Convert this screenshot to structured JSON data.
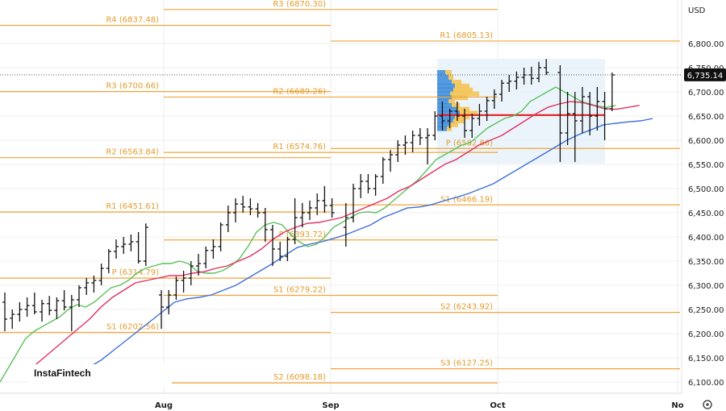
{
  "currency": "USD",
  "logo": "InstaFintech",
  "price_badge": "6,735.14",
  "chart_data": {
    "type": "ohlc",
    "y_ticks": [
      6100,
      6150,
      6200,
      6250,
      6300,
      6350,
      6400,
      6450,
      6500,
      6550,
      6600,
      6650,
      6700,
      6750,
      6800
    ],
    "y_tick_labels": [
      "6,100.00",
      "6,150.00",
      "6,200.00",
      "6,250.00",
      "6,300.00",
      "6,350.00",
      "6,400.00",
      "6,450.00",
      "6,500.00",
      "6,550.00",
      "6,600.00",
      "6,650.00",
      "6,700.00",
      "6,750.00",
      "6,800.00"
    ],
    "ylim": [
      6085,
      6890
    ],
    "months": [
      "Aug",
      "Sep",
      "Oct",
      "No"
    ],
    "current_price": 6735.14,
    "poc_level": 6652,
    "pivots": [
      {
        "period": 0,
        "levels": [
          {
            "label": "R4 (6837.48)",
            "value": 6837.48
          },
          {
            "label": "R3 (6700.66)",
            "value": 6700.66
          },
          {
            "label": "R2 (6563.84)",
            "value": 6563.84
          },
          {
            "label": "R1 (6451.61)",
            "value": 6451.61
          },
          {
            "label": "P (6314.79)",
            "value": 6314.79
          },
          {
            "label": "S1 (6202.56)",
            "value": 6202.56
          }
        ]
      },
      {
        "period": 1,
        "levels": [
          {
            "label": "R3 (6870.30)",
            "value": 6870.3
          },
          {
            "label": "R2 (6689.26)",
            "value": 6689.26
          },
          {
            "label": "R1 (6574.76)",
            "value": 6574.76
          },
          {
            "label": "P (6393.72)",
            "value": 6393.72
          },
          {
            "label": "S1 (6279.22)",
            "value": 6279.22
          },
          {
            "label": "S2 (6098.18)",
            "value": 6098.18
          }
        ]
      },
      {
        "period": 2,
        "levels": [
          {
            "label": "R1 (6805.13)",
            "value": 6805.13
          },
          {
            "label": "P (6582.86)",
            "value": 6582.86
          },
          {
            "label": "S1 (6466.19)",
            "value": 6466.19
          },
          {
            "label": "S2 (6243.92)",
            "value": 6243.92
          },
          {
            "label": "S3 (6127.25)",
            "value": 6127.25
          }
        ]
      }
    ],
    "bars": [
      [
        6265,
        6285,
        6205,
        6230
      ],
      [
        6232,
        6250,
        6210,
        6240
      ],
      [
        6240,
        6265,
        6225,
        6250
      ],
      [
        6250,
        6275,
        6235,
        6258
      ],
      [
        6258,
        6285,
        6240,
        6245
      ],
      [
        6245,
        6270,
        6225,
        6262
      ],
      [
        6262,
        6278,
        6238,
        6248
      ],
      [
        6248,
        6275,
        6230,
        6268
      ],
      [
        6268,
        6290,
        6248,
        6255
      ],
      [
        6255,
        6280,
        6205,
        6270
      ],
      [
        6270,
        6300,
        6255,
        6295
      ],
      [
        6295,
        6315,
        6280,
        6305
      ],
      [
        6305,
        6320,
        6285,
        6310
      ],
      [
        6310,
        6345,
        6300,
        6335
      ],
      [
        6335,
        6375,
        6325,
        6370
      ],
      [
        6370,
        6395,
        6355,
        6380
      ],
      [
        6380,
        6400,
        6365,
        6385
      ],
      [
        6385,
        6405,
        6370,
        6390
      ],
      [
        6390,
        6410,
        6345,
        6350
      ],
      [
        6350,
        6428,
        6340,
        6420
      ],
      [
        6280,
        6290,
        6210,
        6255
      ],
      [
        6255,
        6290,
        6240,
        6280
      ],
      [
        6280,
        6318,
        6270,
        6310
      ],
      [
        6310,
        6330,
        6285,
        6315
      ],
      [
        6315,
        6350,
        6300,
        6340
      ],
      [
        6340,
        6365,
        6320,
        6345
      ],
      [
        6345,
        6380,
        6335,
        6372
      ],
      [
        6372,
        6395,
        6355,
        6380
      ],
      [
        6380,
        6430,
        6370,
        6425
      ],
      [
        6425,
        6465,
        6410,
        6450
      ],
      [
        6450,
        6480,
        6430,
        6468
      ],
      [
        6468,
        6485,
        6450,
        6462
      ],
      [
        6462,
        6480,
        6445,
        6458
      ],
      [
        6458,
        6470,
        6440,
        6450
      ],
      [
        6450,
        6460,
        6390,
        6415
      ],
      [
        6415,
        6425,
        6340,
        6375
      ],
      [
        6375,
        6390,
        6350,
        6360
      ],
      [
        6360,
        6400,
        6350,
        6395
      ],
      [
        6395,
        6480,
        6385,
        6440
      ],
      [
        6440,
        6470,
        6420,
        6450
      ],
      [
        6450,
        6475,
        6435,
        6460
      ],
      [
        6460,
        6490,
        6445,
        6475
      ],
      [
        6475,
        6505,
        6450,
        6465
      ],
      [
        6465,
        6480,
        6440,
        6450
      ],
      [
        6420,
        6470,
        6380,
        6440
      ],
      [
        6440,
        6510,
        6430,
        6500
      ],
      [
        6500,
        6530,
        6480,
        6515
      ],
      [
        6515,
        6530,
        6490,
        6500
      ],
      [
        6500,
        6530,
        6485,
        6525
      ],
      [
        6525,
        6565,
        6510,
        6560
      ],
      [
        6560,
        6580,
        6535,
        6570
      ],
      [
        6570,
        6600,
        6555,
        6590
      ],
      [
        6590,
        6610,
        6570,
        6595
      ],
      [
        6595,
        6620,
        6575,
        6610
      ],
      [
        6610,
        6625,
        6590,
        6605
      ],
      [
        6605,
        6625,
        6550,
        6610
      ],
      [
        6610,
        6660,
        6600,
        6650
      ],
      [
        6650,
        6680,
        6620,
        6640
      ],
      [
        6640,
        6665,
        6625,
        6660
      ],
      [
        6660,
        6680,
        6640,
        6650
      ],
      [
        6650,
        6665,
        6605,
        6620
      ],
      [
        6620,
        6655,
        6605,
        6645
      ],
      [
        6645,
        6675,
        6630,
        6660
      ],
      [
        6660,
        6690,
        6640,
        6682
      ],
      [
        6682,
        6705,
        6665,
        6695
      ],
      [
        6695,
        6725,
        6680,
        6718
      ],
      [
        6718,
        6735,
        6700,
        6722
      ],
      [
        6722,
        6742,
        6705,
        6730
      ],
      [
        6730,
        6750,
        6715,
        6735
      ],
      [
        6735,
        6752,
        6715,
        6728
      ],
      [
        6728,
        6762,
        6720,
        6750
      ],
      [
        6750,
        6768,
        6735,
        6740
      ],
      [
        6740,
        6755,
        6555,
        6615
      ],
      [
        6615,
        6700,
        6590,
        6655
      ],
      [
        6655,
        6700,
        6555,
        6640
      ],
      [
        6640,
        6710,
        6615,
        6690
      ],
      [
        6690,
        6700,
        6610,
        6650
      ],
      [
        6650,
        6710,
        6620,
        6680
      ],
      [
        6680,
        6700,
        6600,
        6665
      ],
      [
        6665,
        6740,
        6660,
        6735
      ]
    ],
    "ma_green": [
      6100,
      6130,
      6160,
      6190,
      6205,
      6215,
      6225,
      6235,
      6250,
      6260,
      6255,
      6265,
      6280,
      6295,
      6300,
      6310,
      6325,
      6335,
      6340,
      6345,
      6345,
      6350,
      6345,
      6330,
      6325,
      6325,
      6330,
      6340,
      6355,
      6380,
      6410,
      6425,
      6430,
      6425,
      6405,
      6390,
      6380,
      6385,
      6400,
      6420,
      6430,
      6440,
      6450,
      6452,
      6450,
      6460,
      6475,
      6490,
      6505,
      6520,
      6540,
      6560,
      6570,
      6580,
      6590,
      6595,
      6610,
      6625,
      6635,
      6645,
      6650,
      6660,
      6680,
      6690,
      6700,
      6710,
      6700,
      6690,
      6680,
      6675,
      6670,
      6668,
      6672
    ],
    "ma_red": [
      6130,
      6150,
      6170,
      6190,
      6210,
      6230,
      6255,
      6275,
      6290,
      6305,
      6310,
      6315,
      6320,
      6320,
      6325,
      6328,
      6335,
      6340,
      6350,
      6360,
      6375,
      6395,
      6410,
      6420,
      6428,
      6430,
      6435,
      6440,
      6450,
      6460,
      6470,
      6480,
      6495,
      6505,
      6520,
      6535,
      6550,
      6560,
      6575,
      6590,
      6600,
      6610,
      6625,
      6640,
      6655,
      6668,
      6675,
      6680,
      6678,
      6672,
      6665,
      6664,
      6668,
      6672
    ],
    "ma_blue": [
      6130,
      6145,
      6165,
      6185,
      6205,
      6225,
      6245,
      6265,
      6272,
      6275,
      6280,
      6290,
      6300,
      6315,
      6330,
      6345,
      6362,
      6378,
      6385,
      6390,
      6397,
      6405,
      6415,
      6425,
      6440,
      6450,
      6460,
      6462,
      6467,
      6475,
      6482,
      6490,
      6500,
      6510,
      6525,
      6540,
      6555,
      6570,
      6585,
      6600,
      6612,
      6622,
      6632,
      6635,
      6638,
      6640,
      6645
    ]
  }
}
